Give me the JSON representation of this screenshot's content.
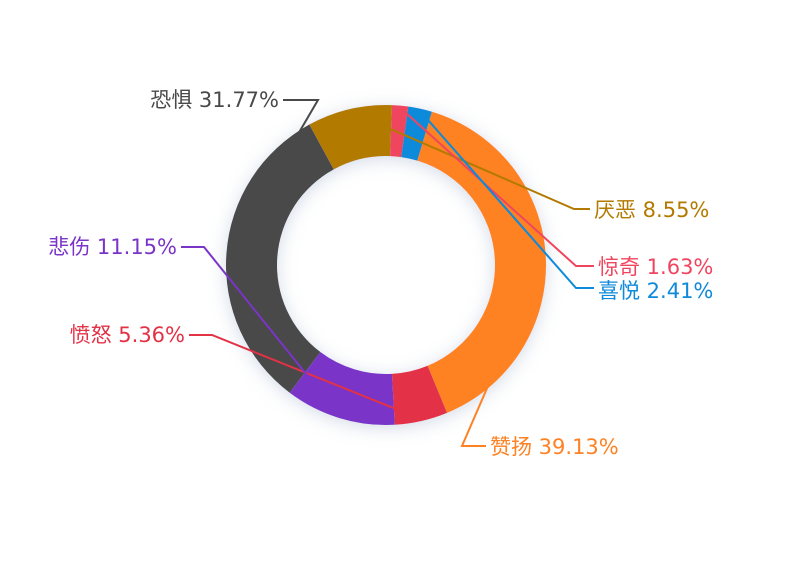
{
  "chart_data": {
    "type": "pie",
    "donut": true,
    "title": "",
    "legend": "none",
    "slices": [
      {
        "label": "恐惧",
        "percent_text": "31.77%",
        "value": 31.77,
        "color": "#494949"
      },
      {
        "label": "厌恶",
        "percent_text": "8.55%",
        "value": 8.55,
        "color": "#B37A00"
      },
      {
        "label": "惊奇",
        "percent_text": "1.63%",
        "value": 1.63,
        "color": "#F0455F"
      },
      {
        "label": "喜悦",
        "percent_text": "2.41%",
        "value": 2.41,
        "color": "#0E8ADA"
      },
      {
        "label": "赞扬",
        "percent_text": "39.13%",
        "value": 39.13,
        "color": "#FE8223"
      },
      {
        "label": "愤怒",
        "percent_text": "5.36%",
        "value": 5.36,
        "color": "#E33146"
      },
      {
        "label": "悲伤",
        "percent_text": "11.15%",
        "value": 11.15,
        "color": "#7A35C8"
      }
    ]
  }
}
